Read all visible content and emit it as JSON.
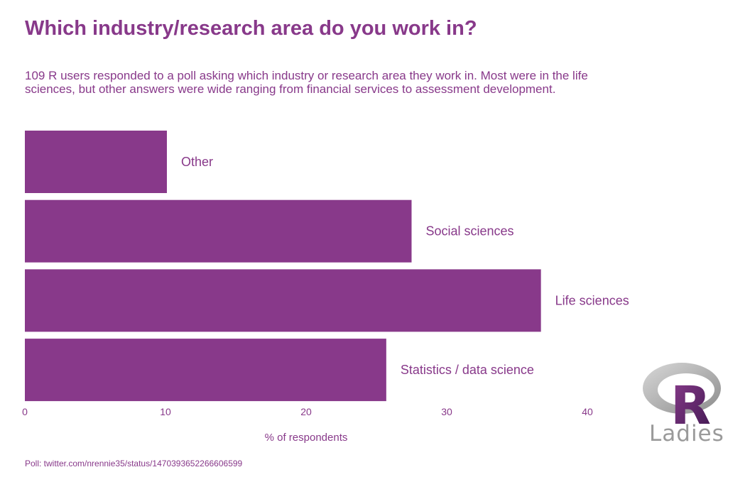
{
  "title": "Which industry/research area do you work in?",
  "subtitle": "109 R users responded to a poll asking which industry or research area they work in. Most were in the life sciences, but other answers were wide ranging from financial services to assessment development.",
  "caption": "Poll: twitter.com/nrennie35/status/1470393652266606599",
  "logo": {
    "text": "Ladies",
    "letter": "R"
  },
  "colors": {
    "accent": "#88398A"
  },
  "chart_data": {
    "type": "bar",
    "orientation": "horizontal",
    "categories": [
      "Other",
      "Social sciences",
      "Life sciences",
      "Statistics / data science"
    ],
    "values": [
      10.1,
      27.5,
      36.7,
      25.7
    ],
    "xlabel": "% of respondents",
    "ylabel": "",
    "xlim": [
      0,
      40
    ],
    "xticks": [
      0,
      10,
      20,
      30,
      40
    ],
    "grid": false,
    "legend": "none"
  }
}
